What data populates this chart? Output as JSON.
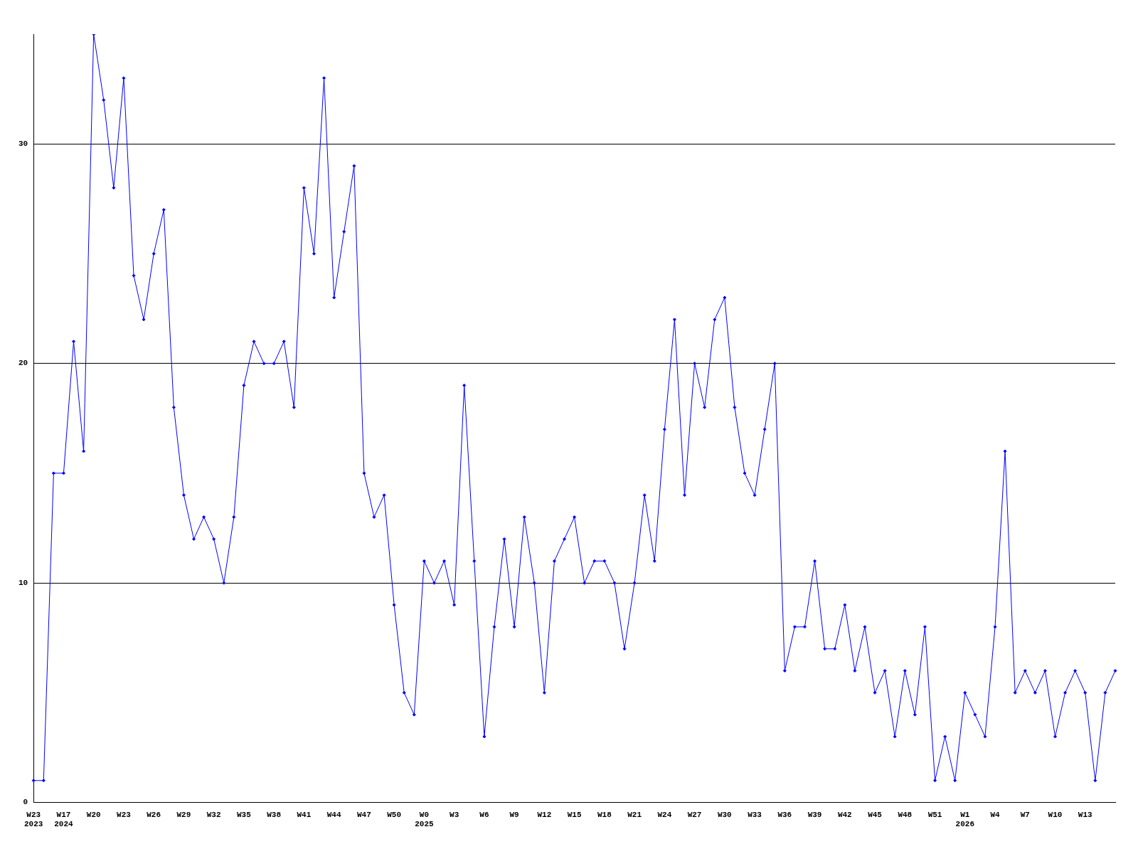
{
  "chart_data": {
    "type": "line",
    "categories": [
      "W23\n2023",
      null,
      null,
      "W17\n2024",
      null,
      null,
      "W20",
      null,
      null,
      "W23",
      null,
      null,
      "W26",
      null,
      null,
      "W29",
      null,
      null,
      "W32",
      null,
      null,
      "W35",
      null,
      null,
      "W38",
      null,
      null,
      "W41",
      null,
      null,
      "W44",
      null,
      null,
      "W47",
      null,
      null,
      "W50",
      null,
      null,
      "W0\n2025",
      null,
      null,
      "W3",
      null,
      null,
      "W6",
      null,
      null,
      "W9",
      null,
      null,
      "W12",
      null,
      null,
      "W15",
      null,
      null,
      "W18",
      null,
      null,
      "W21",
      null,
      null,
      "W24",
      null,
      null,
      "W27",
      null,
      null,
      "W30",
      null,
      null,
      "W33",
      null,
      null,
      "W36",
      null,
      null,
      "W39",
      null,
      null,
      "W42",
      null,
      null,
      "W45",
      null,
      null,
      "W48",
      null,
      null,
      "W51",
      null,
      null,
      "W1\n2026",
      null,
      null,
      "W4",
      null,
      null,
      "W7",
      null,
      null,
      "W10",
      null,
      null,
      "W13",
      null,
      null,
      null
    ],
    "series": [
      {
        "color": "#0000ff",
        "values": [
          1,
          1,
          15,
          15,
          21,
          16,
          35,
          32,
          28,
          33,
          24,
          22,
          25,
          27,
          18,
          14,
          12,
          13,
          12,
          10,
          13,
          19,
          21,
          20,
          20,
          21,
          18,
          28,
          25,
          33,
          23,
          26,
          29,
          15,
          13,
          14,
          9,
          5,
          4,
          11,
          10,
          11,
          9,
          19,
          11,
          3,
          8,
          12,
          8,
          13,
          10,
          5,
          11,
          12,
          13,
          10,
          11,
          11,
          10,
          7,
          10,
          14,
          11,
          17,
          22,
          14,
          20,
          18,
          22,
          23,
          18,
          15,
          14,
          17,
          20,
          6,
          8,
          8,
          11,
          7,
          7,
          9,
          6,
          8,
          5,
          6,
          3,
          6,
          4,
          8,
          1,
          3,
          1,
          5,
          4,
          3,
          8,
          16,
          5,
          6,
          5,
          6,
          3,
          5,
          6,
          5,
          1,
          5,
          6
        ]
      }
    ],
    "ylim": [
      0,
      35
    ],
    "yticks": [
      0,
      10,
      20,
      30
    ],
    "grid": "y",
    "marker": "diamond",
    "line_style": "solid"
  }
}
